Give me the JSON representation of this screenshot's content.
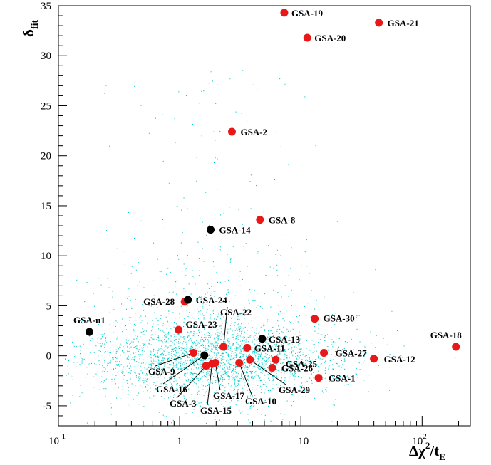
{
  "chart_data": {
    "type": "scatter",
    "title": "",
    "xlabel": {
      "main": "Δχ",
      "sup": "2",
      "mid": "/t",
      "sub": "E"
    },
    "ylabel": {
      "main": "δ",
      "sub": "fit"
    },
    "xscale": "log",
    "xlim": [
      0.1,
      250
    ],
    "ylim": [
      -7,
      35
    ],
    "grid": false,
    "y_ticks": [
      -5,
      0,
      5,
      10,
      15,
      20,
      25,
      30,
      35
    ],
    "y_tick_labels": [
      "-5",
      "0",
      "5",
      "10",
      "15",
      "20",
      "25",
      "30",
      "35"
    ],
    "x_ticks": [
      {
        "value": 0.1,
        "base": "10",
        "exp": "-1"
      },
      {
        "value": 1,
        "base": "1",
        "exp": ""
      },
      {
        "value": 10,
        "base": "10",
        "exp": ""
      },
      {
        "value": 100,
        "base": "10",
        "exp": "2"
      }
    ],
    "background": {
      "description": "dense cloud of simulated events",
      "color": "#00cccc"
    },
    "marker_colors": {
      "red": "#e81818",
      "black": "#000000"
    },
    "points": [
      {
        "label": "GSA-19",
        "x": 7.3,
        "y": 34.3,
        "color": "red"
      },
      {
        "label": "GSA-21",
        "x": 44,
        "y": 33.3,
        "color": "red"
      },
      {
        "label": "GSA-20",
        "x": 11.3,
        "y": 31.8,
        "color": "red"
      },
      {
        "label": "GSA-2",
        "x": 2.7,
        "y": 22.4,
        "color": "red"
      },
      {
        "label": "GSA-8",
        "x": 4.6,
        "y": 13.6,
        "color": "red"
      },
      {
        "label": "GSA-14",
        "x": 1.8,
        "y": 12.6,
        "color": "black"
      },
      {
        "label": "GSA-28",
        "x": 1.1,
        "y": 5.4,
        "color": "red"
      },
      {
        "label": "GSA-24",
        "x": 1.17,
        "y": 5.6,
        "color": "black"
      },
      {
        "label": "GSA-u1",
        "x": 0.18,
        "y": 2.4,
        "color": "black"
      },
      {
        "label": "GSA-23",
        "x": 0.98,
        "y": 2.6,
        "color": "red"
      },
      {
        "label": "GSA-22",
        "x": 2.3,
        "y": 0.9,
        "color": "red"
      },
      {
        "label": "GSA-30",
        "x": 13,
        "y": 3.7,
        "color": "red"
      },
      {
        "label": "GSA-13",
        "x": 4.8,
        "y": 1.7,
        "color": "black"
      },
      {
        "label": "GSA-11",
        "x": 3.6,
        "y": 0.8,
        "color": "red"
      },
      {
        "label": "GSA-18",
        "x": 190,
        "y": 0.9,
        "color": "red"
      },
      {
        "label": "GSA-27",
        "x": 15.5,
        "y": 0.3,
        "color": "red"
      },
      {
        "label": "GSA-25",
        "x": 6.2,
        "y": -0.4,
        "color": "red"
      },
      {
        "label": "GSA-12",
        "x": 40,
        "y": -0.3,
        "color": "red"
      },
      {
        "label": "GSA-26",
        "x": 5.8,
        "y": -1.2,
        "color": "red"
      },
      {
        "label": "GSA-1",
        "x": 14,
        "y": -2.2,
        "color": "red"
      },
      {
        "label": "GSA-9",
        "x": 1.3,
        "y": 0.3,
        "color": "red"
      },
      {
        "label": "GSA-16",
        "x": 1.6,
        "y": 0.05,
        "color": "black"
      },
      {
        "label": "GSA-3",
        "x": 1.65,
        "y": -1.0,
        "color": "red"
      },
      {
        "label": "GSA-15",
        "x": 1.85,
        "y": -0.8,
        "color": "red"
      },
      {
        "label": "GSA-17",
        "x": 1.97,
        "y": -0.7,
        "color": "red"
      },
      {
        "label": "GSA-10",
        "x": 3.1,
        "y": -0.7,
        "color": "red"
      },
      {
        "label": "GSA-29",
        "x": 3.8,
        "y": -0.4,
        "color": "red"
      }
    ]
  }
}
